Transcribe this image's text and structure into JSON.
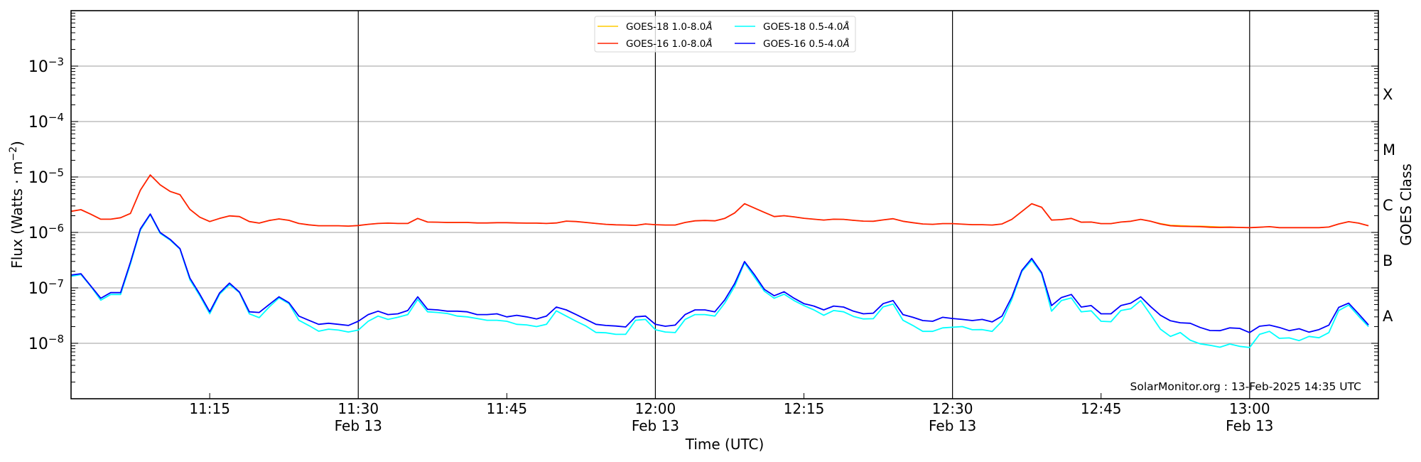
{
  "chart_data": {
    "type": "line",
    "title": "",
    "xlabel": "Time (UTC)",
    "ylabel": "Flux (Watts · m",
    "ylabel_exp": "−2",
    "ylabel_close": ")",
    "right_label": "GOES Class",
    "x_start": "11:01",
    "x_step_minutes": 1,
    "xlim": [
      "11:01",
      "13:13"
    ],
    "ylim": [
      1e-09,
      0.01
    ],
    "yscale": "log",
    "grid": "horizontal at decades",
    "legend_position": "top-center",
    "xticks": [
      {
        "time": "11:15",
        "label": "11:15",
        "date": ""
      },
      {
        "time": "11:30",
        "label": "11:30",
        "date": "Feb 13"
      },
      {
        "time": "11:45",
        "label": "11:45",
        "date": ""
      },
      {
        "time": "12:00",
        "label": "12:00",
        "date": "Feb 13"
      },
      {
        "time": "12:15",
        "label": "12:15",
        "date": ""
      },
      {
        "time": "12:30",
        "label": "12:30",
        "date": "Feb 13"
      },
      {
        "time": "12:45",
        "label": "12:45",
        "date": ""
      },
      {
        "time": "13:00",
        "label": "13:00",
        "date": "Feb 13"
      }
    ],
    "yticks": [
      {
        "value": 0.001,
        "base": "10",
        "exp": "−3"
      },
      {
        "value": 0.0001,
        "base": "10",
        "exp": "−4"
      },
      {
        "value": 1e-05,
        "base": "10",
        "exp": "−5"
      },
      {
        "value": 1e-06,
        "base": "10",
        "exp": "−6"
      },
      {
        "value": 1e-07,
        "base": "10",
        "exp": "−7"
      },
      {
        "value": 1e-08,
        "base": "10",
        "exp": "−8"
      }
    ],
    "goes_classes": [
      {
        "label": "X",
        "value": 0.000316
      },
      {
        "label": "M",
        "value": 3.16e-05
      },
      {
        "label": "C",
        "value": 3.16e-06
      },
      {
        "label": "B",
        "value": 3.16e-07
      },
      {
        "label": "A",
        "value": 3.16e-08
      }
    ],
    "annotation": "SolarMonitor.org : 13-Feb-2025 14:35 UTC",
    "series": [
      {
        "name": "GOES-18 1.0-8.0",
        "unit": "Å",
        "color": "#ffcc00",
        "values": [
          2.4e-06,
          2.57e-06,
          2.13e-06,
          1.73e-06,
          1.73e-06,
          1.84e-06,
          2.2e-06,
          5.8e-06,
          1.09e-05,
          7.2e-06,
          5.5e-06,
          4.8e-06,
          2.6e-06,
          1.88e-06,
          1.57e-06,
          1.79e-06,
          1.99e-06,
          1.93e-06,
          1.57e-06,
          1.47e-06,
          1.64e-06,
          1.75e-06,
          1.65e-06,
          1.45e-06,
          1.37e-06,
          1.32e-06,
          1.32e-06,
          1.32e-06,
          1.3e-06,
          1.33e-06,
          1.4e-06,
          1.45e-06,
          1.47e-06,
          1.45e-06,
          1.45e-06,
          1.79e-06,
          1.54e-06,
          1.53e-06,
          1.51e-06,
          1.51e-06,
          1.51e-06,
          1.48e-06,
          1.48e-06,
          1.5e-06,
          1.5e-06,
          1.48e-06,
          1.47e-06,
          1.47e-06,
          1.45e-06,
          1.48e-06,
          1.6e-06,
          1.57e-06,
          1.51e-06,
          1.45e-06,
          1.4e-06,
          1.37e-06,
          1.36e-06,
          1.34e-06,
          1.42e-06,
          1.38e-06,
          1.36e-06,
          1.36e-06,
          1.51e-06,
          1.62e-06,
          1.64e-06,
          1.62e-06,
          1.79e-06,
          2.24e-06,
          3.3e-06,
          2.75e-06,
          2.3e-06,
          1.93e-06,
          2e-06,
          1.91e-06,
          1.8e-06,
          1.73e-06,
          1.67e-06,
          1.73e-06,
          1.72e-06,
          1.65e-06,
          1.6e-06,
          1.59e-06,
          1.68e-06,
          1.77e-06,
          1.59e-06,
          1.5e-06,
          1.42e-06,
          1.4e-06,
          1.44e-06,
          1.44e-06,
          1.41e-06,
          1.38e-06,
          1.38e-06,
          1.36e-06,
          1.42e-06,
          1.72e-06,
          2.38e-06,
          3.3e-06,
          2.84e-06,
          1.67e-06,
          1.7e-06,
          1.79e-06,
          1.53e-06,
          1.54e-06,
          1.44e-06,
          1.44e-06,
          1.54e-06,
          1.59e-06,
          1.72e-06,
          1.59e-06,
          1.45e-06,
          1.35e-06,
          1.33e-06,
          1.31e-06,
          1.3e-06,
          1.28e-06,
          1.26e-06,
          1.26e-06,
          1.23e-06,
          1.22e-06,
          1.24e-06,
          1.27e-06,
          1.22e-06,
          1.22e-06,
          1.22e-06,
          1.22e-06,
          1.22e-06,
          1.25e-06,
          1.42e-06,
          1.56e-06,
          1.47e-06,
          1.32e-06
        ]
      },
      {
        "name": "GOES-16 1.0-8.0",
        "unit": "Å",
        "color": "#ff2200",
        "values": [
          2.4e-06,
          2.57e-06,
          2.13e-06,
          1.73e-06,
          1.73e-06,
          1.84e-06,
          2.2e-06,
          5.8e-06,
          1.09e-05,
          7.2e-06,
          5.5e-06,
          4.8e-06,
          2.6e-06,
          1.88e-06,
          1.57e-06,
          1.79e-06,
          1.99e-06,
          1.93e-06,
          1.57e-06,
          1.47e-06,
          1.64e-06,
          1.75e-06,
          1.65e-06,
          1.45e-06,
          1.37e-06,
          1.32e-06,
          1.32e-06,
          1.32e-06,
          1.3e-06,
          1.33e-06,
          1.4e-06,
          1.45e-06,
          1.47e-06,
          1.45e-06,
          1.45e-06,
          1.79e-06,
          1.54e-06,
          1.53e-06,
          1.51e-06,
          1.51e-06,
          1.51e-06,
          1.48e-06,
          1.48e-06,
          1.5e-06,
          1.5e-06,
          1.48e-06,
          1.47e-06,
          1.47e-06,
          1.45e-06,
          1.48e-06,
          1.6e-06,
          1.57e-06,
          1.51e-06,
          1.45e-06,
          1.4e-06,
          1.37e-06,
          1.36e-06,
          1.34e-06,
          1.42e-06,
          1.38e-06,
          1.36e-06,
          1.36e-06,
          1.51e-06,
          1.62e-06,
          1.64e-06,
          1.62e-06,
          1.79e-06,
          2.24e-06,
          3.3e-06,
          2.75e-06,
          2.3e-06,
          1.93e-06,
          2e-06,
          1.91e-06,
          1.8e-06,
          1.73e-06,
          1.67e-06,
          1.73e-06,
          1.72e-06,
          1.65e-06,
          1.6e-06,
          1.59e-06,
          1.68e-06,
          1.77e-06,
          1.59e-06,
          1.5e-06,
          1.42e-06,
          1.4e-06,
          1.44e-06,
          1.44e-06,
          1.41e-06,
          1.38e-06,
          1.38e-06,
          1.36e-06,
          1.42e-06,
          1.72e-06,
          2.38e-06,
          3.3e-06,
          2.84e-06,
          1.67e-06,
          1.7e-06,
          1.79e-06,
          1.53e-06,
          1.54e-06,
          1.44e-06,
          1.44e-06,
          1.54e-06,
          1.59e-06,
          1.72e-06,
          1.59e-06,
          1.42e-06,
          1.32e-06,
          1.29e-06,
          1.28e-06,
          1.27e-06,
          1.24e-06,
          1.23e-06,
          1.24e-06,
          1.23e-06,
          1.22e-06,
          1.24e-06,
          1.27e-06,
          1.22e-06,
          1.22e-06,
          1.22e-06,
          1.22e-06,
          1.22e-06,
          1.25e-06,
          1.42e-06,
          1.56e-06,
          1.47e-06,
          1.32e-06
        ]
      },
      {
        "name": "GOES-18 0.5-4.0",
        "unit": "Å",
        "color": "#00ffff",
        "values": [
          1.62e-07,
          1.74e-07,
          1.06e-07,
          6e-08,
          7.6e-08,
          7.6e-08,
          2.7e-07,
          1.1e-06,
          2.1e-06,
          9.6e-07,
          7.3e-07,
          5e-07,
          1.4e-07,
          7.2e-08,
          3.4e-08,
          7.7e-08,
          1.15e-07,
          8.2e-08,
          3.4e-08,
          2.9e-08,
          4.5e-08,
          6.6e-08,
          5.2e-08,
          2.6e-08,
          2.1e-08,
          1.65e-08,
          1.8e-08,
          1.73e-08,
          1.6e-08,
          1.73e-08,
          2.5e-08,
          3.1e-08,
          2.7e-08,
          2.95e-08,
          3.3e-08,
          6.2e-08,
          3.7e-08,
          3.6e-08,
          3.45e-08,
          3.1e-08,
          3e-08,
          2.8e-08,
          2.6e-08,
          2.6e-08,
          2.5e-08,
          2.2e-08,
          2.15e-08,
          2e-08,
          2.2e-08,
          3.85e-08,
          3.1e-08,
          2.5e-08,
          2.05e-08,
          1.57e-08,
          1.55e-08,
          1.45e-08,
          1.45e-08,
          2.6e-08,
          2.7e-08,
          1.76e-08,
          1.6e-08,
          1.56e-08,
          2.7e-08,
          3.3e-08,
          3.3e-08,
          3.1e-08,
          5.3e-08,
          1.06e-07,
          2.84e-07,
          1.57e-07,
          8.7e-08,
          6.5e-08,
          7.7e-08,
          5.9e-08,
          4.8e-08,
          4e-08,
          3.2e-08,
          3.9e-08,
          3.7e-08,
          3.05e-08,
          2.75e-08,
          2.78e-08,
          4.55e-08,
          5.1e-08,
          2.6e-08,
          2.1e-08,
          1.64e-08,
          1.64e-08,
          1.9e-08,
          1.95e-08,
          2e-08,
          1.76e-08,
          1.77e-08,
          1.64e-08,
          2.5e-08,
          6.2e-08,
          1.97e-07,
          3.16e-07,
          1.79e-07,
          3.8e-08,
          5.9e-08,
          6.6e-08,
          3.7e-08,
          3.85e-08,
          2.5e-08,
          2.45e-08,
          3.9e-08,
          4.2e-08,
          5.9e-08,
          3.3e-08,
          1.8e-08,
          1.33e-08,
          1.56e-08,
          1.14e-08,
          9.8e-09,
          9.2e-09,
          8.5e-09,
          9.7e-09,
          8.8e-09,
          8.4e-09,
          1.45e-08,
          1.64e-08,
          1.23e-08,
          1.25e-08,
          1.12e-08,
          1.33e-08,
          1.26e-08,
          1.56e-08,
          3.9e-08,
          4.9e-08,
          3.1e-08,
          2e-08
        ]
      },
      {
        "name": "GOES-16 0.5-4.0",
        "unit": "Å",
        "color": "#0000ff",
        "values": [
          1.7e-07,
          1.8e-07,
          1.08e-07,
          6.5e-08,
          8.2e-08,
          8.2e-08,
          2.9e-07,
          1.16e-06,
          2.15e-06,
          9.9e-07,
          7.5e-07,
          5.1e-07,
          1.5e-07,
          7.7e-08,
          3.7e-08,
          8.1e-08,
          1.22e-07,
          8.4e-08,
          3.7e-08,
          3.6e-08,
          5e-08,
          6.9e-08,
          5.4e-08,
          3.1e-08,
          2.6e-08,
          2.2e-08,
          2.3e-08,
          2.2e-08,
          2.1e-08,
          2.5e-08,
          3.3e-08,
          3.8e-08,
          3.3e-08,
          3.4e-08,
          3.9e-08,
          6.9e-08,
          4.1e-08,
          4e-08,
          3.8e-08,
          3.8e-08,
          3.7e-08,
          3.3e-08,
          3.3e-08,
          3.4e-08,
          3e-08,
          3.2e-08,
          3e-08,
          2.75e-08,
          3.1e-08,
          4.5e-08,
          4e-08,
          3.3e-08,
          2.7e-08,
          2.2e-08,
          2.1e-08,
          2.05e-08,
          1.97e-08,
          3e-08,
          3.1e-08,
          2.2e-08,
          2.03e-08,
          2.13e-08,
          3.3e-08,
          4e-08,
          4e-08,
          3.7e-08,
          6.05e-08,
          1.19e-07,
          2.98e-07,
          1.73e-07,
          9.4e-08,
          7.2e-08,
          8.5e-08,
          6.5e-08,
          5.2e-08,
          4.7e-08,
          4e-08,
          4.7e-08,
          4.5e-08,
          3.8e-08,
          3.4e-08,
          3.5e-08,
          5.2e-08,
          5.9e-08,
          3.3e-08,
          2.95e-08,
          2.57e-08,
          2.5e-08,
          2.95e-08,
          2.8e-08,
          2.7e-08,
          2.57e-08,
          2.7e-08,
          2.43e-08,
          3.1e-08,
          6.9e-08,
          2.07e-07,
          3.39e-07,
          1.88e-07,
          4.8e-08,
          6.7e-08,
          7.6e-08,
          4.5e-08,
          4.8e-08,
          3.4e-08,
          3.4e-08,
          4.8e-08,
          5.3e-08,
          6.9e-08,
          4.6e-08,
          3.2e-08,
          2.55e-08,
          2.35e-08,
          2.3e-08,
          1.93e-08,
          1.7e-08,
          1.69e-08,
          1.9e-08,
          1.86e-08,
          1.56e-08,
          2.03e-08,
          2.13e-08,
          1.93e-08,
          1.69e-08,
          1.83e-08,
          1.59e-08,
          1.77e-08,
          2.13e-08,
          4.45e-08,
          5.3e-08,
          3.4e-08,
          2.15e-08
        ]
      }
    ]
  }
}
